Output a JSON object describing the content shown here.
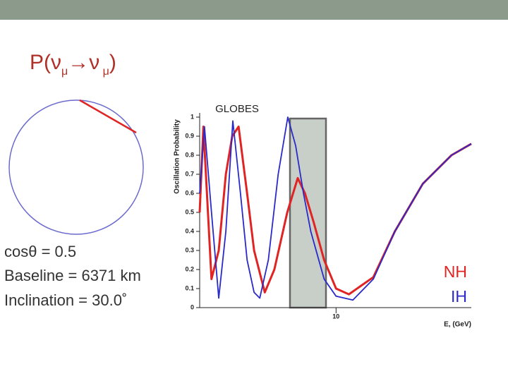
{
  "slide": {
    "title_parts": [
      "P(ν",
      "μ",
      "→ν",
      " μ",
      ")"
    ],
    "info": [
      "cosθ = 0.5",
      "Baseline = 6371 km",
      "Inclination = 30.0˚"
    ]
  },
  "chart_data": {
    "type": "line",
    "title": "GLOBES",
    "ylabel": "Oscillation Probability",
    "xlabel": "E, (GeV)",
    "log_x": true,
    "xlim": [
      3,
      33
    ],
    "xticks": [
      10
    ],
    "ylim": [
      0,
      1
    ],
    "yticks": [
      0,
      0.1,
      0.2,
      0.3,
      0.4,
      0.5,
      0.6,
      0.7,
      0.8,
      0.9,
      1
    ],
    "legend": "right",
    "series": [
      {
        "name": "NH",
        "color": "#e02424",
        "x": [
          3.0,
          3.1,
          3.33,
          3.55,
          3.78,
          4.0,
          4.23,
          4.56,
          4.85,
          5.33,
          5.8,
          6.5,
          7.13,
          7.6,
          8.2,
          9.0,
          10,
          11.2,
          13.9,
          16.8,
          21.5,
          27.7,
          33
        ],
        "values": [
          0.5,
          0.95,
          0.15,
          0.3,
          0.7,
          0.9,
          0.95,
          0.6,
          0.3,
          0.08,
          0.2,
          0.5,
          0.68,
          0.6,
          0.45,
          0.25,
          0.1,
          0.07,
          0.16,
          0.4,
          0.65,
          0.8,
          0.86
        ]
      },
      {
        "name": "IH",
        "color": "#2a2ac8",
        "x": [
          3.0,
          3.13,
          3.33,
          3.55,
          3.78,
          4.02,
          4.3,
          4.56,
          4.85,
          5.1,
          5.5,
          6.0,
          6.53,
          7.0,
          7.5,
          8.0,
          9.0,
          10,
          11.6,
          13.9,
          16.8,
          21.5,
          27.7,
          33
        ],
        "values": [
          0.6,
          0.95,
          0.5,
          0.05,
          0.4,
          0.98,
          0.6,
          0.25,
          0.08,
          0.05,
          0.25,
          0.7,
          1.0,
          0.85,
          0.6,
          0.4,
          0.15,
          0.06,
          0.04,
          0.15,
          0.4,
          0.65,
          0.8,
          0.86
        ]
      }
    ]
  }
}
